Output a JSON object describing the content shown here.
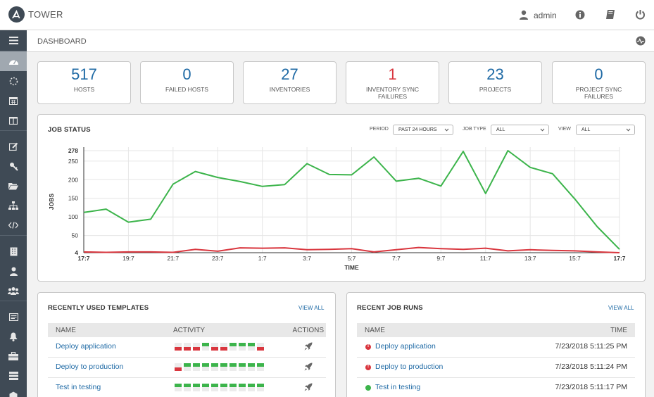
{
  "header": {
    "brand": "TOWER",
    "user": "admin"
  },
  "breadcrumb": "DASHBOARD",
  "counts": [
    {
      "key": "hosts",
      "value": "517",
      "label": "HOSTS",
      "status": "normal"
    },
    {
      "key": "failed-hosts",
      "value": "0",
      "label": "FAILED HOSTS",
      "status": "normal"
    },
    {
      "key": "inventories",
      "value": "27",
      "label": "INVENTORIES",
      "status": "normal"
    },
    {
      "key": "inventory-sync-failures",
      "value": "1",
      "label": "INVENTORY SYNC FAILURES",
      "status": "failed"
    },
    {
      "key": "projects",
      "value": "23",
      "label": "PROJECTS",
      "status": "normal"
    },
    {
      "key": "project-sync-failures",
      "value": "0",
      "label": "PROJECT SYNC FAILURES",
      "status": "normal"
    }
  ],
  "job_status": {
    "title": "JOB STATUS",
    "period_label": "PERIOD",
    "period_value": "PAST 24 HOURS",
    "job_type_label": "JOB TYPE",
    "job_type_value": "ALL",
    "view_label": "VIEW",
    "view_value": "ALL"
  },
  "chart_data": {
    "type": "line",
    "xlabel": "TIME",
    "ylabel": "JOBS",
    "ylim": [
      4,
      278
    ],
    "yticks": [
      4,
      50,
      100,
      150,
      200,
      250,
      278
    ],
    "x": [
      0,
      1,
      2,
      3,
      4,
      5,
      6,
      7,
      8,
      9,
      10,
      11,
      12,
      13,
      14,
      15,
      16,
      17,
      18,
      19,
      20,
      21,
      22,
      23,
      24
    ],
    "xticks": [
      {
        "x": 0,
        "label": "17:7",
        "bold": true
      },
      {
        "x": 2,
        "label": "19:7",
        "bold": false
      },
      {
        "x": 4,
        "label": "21:7",
        "bold": false
      },
      {
        "x": 6,
        "label": "23:7",
        "bold": false
      },
      {
        "x": 8,
        "label": "1:7",
        "bold": false
      },
      {
        "x": 10,
        "label": "3:7",
        "bold": false
      },
      {
        "x": 12,
        "label": "5:7",
        "bold": false
      },
      {
        "x": 14,
        "label": "7:7",
        "bold": false
      },
      {
        "x": 16,
        "label": "9:7",
        "bold": false
      },
      {
        "x": 18,
        "label": "11:7",
        "bold": false
      },
      {
        "x": 20,
        "label": "13:7",
        "bold": false
      },
      {
        "x": 22,
        "label": "15:7",
        "bold": false
      },
      {
        "x": 24,
        "label": "17:7",
        "bold": true
      }
    ],
    "series": [
      {
        "color": "#3cb44b",
        "values": [
          112,
          121,
          86,
          94,
          188,
          222,
          206,
          195,
          182,
          187,
          243,
          214,
          213,
          261,
          196,
          204,
          183,
          276,
          163,
          278,
          233,
          216,
          148,
          74,
          13
        ]
      },
      {
        "color": "#d9363e",
        "values": [
          6,
          5,
          6,
          6,
          5,
          13,
          8,
          17,
          16,
          17,
          12,
          13,
          15,
          6,
          12,
          18,
          15,
          13,
          16,
          9,
          12,
          10,
          9,
          6,
          4
        ]
      }
    ],
    "grid": true
  },
  "templates": {
    "title": "RECENTLY USED TEMPLATES",
    "view_all": "VIEW ALL",
    "columns": {
      "name": "NAME",
      "activity": "ACTIVITY",
      "actions": "ACTIONS"
    },
    "rows": [
      {
        "name": "Deploy application",
        "activity": [
          "f",
          "f",
          "f",
          "s",
          "f",
          "f",
          "s",
          "s",
          "s",
          "f"
        ]
      },
      {
        "name": "Deploy to production",
        "activity": [
          "f",
          "s",
          "s",
          "s",
          "s",
          "s",
          "s",
          "s",
          "s",
          "s"
        ]
      },
      {
        "name": "Test in testing",
        "activity": [
          "s",
          "s",
          "s",
          "s",
          "s",
          "s",
          "s",
          "s",
          "s",
          "s"
        ]
      }
    ]
  },
  "job_runs": {
    "title": "RECENT JOB RUNS",
    "view_all": "VIEW ALL",
    "columns": {
      "name": "NAME",
      "time": "TIME"
    },
    "rows": [
      {
        "name": "Deploy application",
        "time": "7/23/2018 5:11:25 PM",
        "status": "failed"
      },
      {
        "name": "Deploy to production",
        "time": "7/23/2018 5:11:24 PM",
        "status": "failed"
      },
      {
        "name": "Test in testing",
        "time": "7/23/2018 5:11:17 PM",
        "status": "successful"
      }
    ]
  },
  "colors": {
    "accent": "#1f6aa5",
    "success": "#3cb44b",
    "failure": "#d9363e",
    "sidebar": "#3f4a55"
  },
  "icons": {
    "sidebar": [
      "menu-icon",
      "dashboard-icon",
      "jobs-icon",
      "schedules-icon",
      "portal-icon",
      "templates-icon",
      "credentials-icon",
      "projects-icon",
      "inventories-icon",
      "inventory-scripts-icon",
      "organizations-icon",
      "users-icon",
      "teams-icon",
      "credential-types-icon",
      "notifications-icon",
      "management-jobs-icon",
      "instance-groups-icon",
      "applications-icon"
    ]
  }
}
